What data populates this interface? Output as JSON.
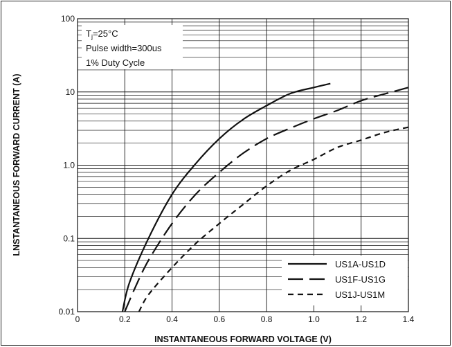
{
  "chart_data": {
    "type": "line",
    "xlabel": "INSTANTANEOUS FORWARD VOLTAGE (V)",
    "ylabel": "LNSTANTANEOUS FORWARD CURRENT (A)",
    "xlim": [
      0,
      1.4
    ],
    "ylim": [
      0.01,
      100
    ],
    "yscale": "log",
    "grid": true,
    "x_ticks": [
      "0",
      "0.2",
      "0.4",
      "0.6",
      "0.8",
      "1.0",
      "1.2",
      "1.4"
    ],
    "y_ticks": [
      "0.01",
      "0.1",
      "1.0",
      "10",
      "100"
    ],
    "annotation": {
      "line1_prefix": "T",
      "line1_sub": "j",
      "line1_suffix": "=25°C",
      "line2": "Pulse width=300us",
      "line3": "1% Duty Cycle"
    },
    "legend_position": "bottom-right",
    "series": [
      {
        "name": "US1A-US1D",
        "dash": "solid",
        "points": [
          [
            0.19,
            0.01
          ],
          [
            0.22,
            0.025
          ],
          [
            0.3,
            0.1
          ],
          [
            0.4,
            0.4
          ],
          [
            0.5,
            1.05
          ],
          [
            0.6,
            2.3
          ],
          [
            0.7,
            4.2
          ],
          [
            0.8,
            6.5
          ],
          [
            0.9,
            9.5
          ],
          [
            1.0,
            11.5
          ],
          [
            1.07,
            13
          ]
        ]
      },
      {
        "name": "US1F-US1G",
        "dash": "long-dash",
        "points": [
          [
            0.2,
            0.01
          ],
          [
            0.24,
            0.02
          ],
          [
            0.3,
            0.05
          ],
          [
            0.4,
            0.16
          ],
          [
            0.5,
            0.4
          ],
          [
            0.6,
            0.8
          ],
          [
            0.7,
            1.45
          ],
          [
            0.8,
            2.3
          ],
          [
            0.9,
            3.2
          ],
          [
            1.0,
            4.3
          ],
          [
            1.1,
            5.6
          ],
          [
            1.2,
            7.6
          ],
          [
            1.3,
            9.4
          ],
          [
            1.4,
            11.5
          ]
        ]
      },
      {
        "name": "US1J-US1M",
        "dash": "short-dash",
        "points": [
          [
            0.26,
            0.01
          ],
          [
            0.3,
            0.017
          ],
          [
            0.4,
            0.04
          ],
          [
            0.5,
            0.085
          ],
          [
            0.6,
            0.16
          ],
          [
            0.7,
            0.29
          ],
          [
            0.8,
            0.52
          ],
          [
            0.9,
            0.85
          ],
          [
            1.0,
            1.2
          ],
          [
            1.1,
            1.75
          ],
          [
            1.2,
            2.2
          ],
          [
            1.3,
            2.8
          ],
          [
            1.4,
            3.3
          ]
        ]
      }
    ]
  }
}
